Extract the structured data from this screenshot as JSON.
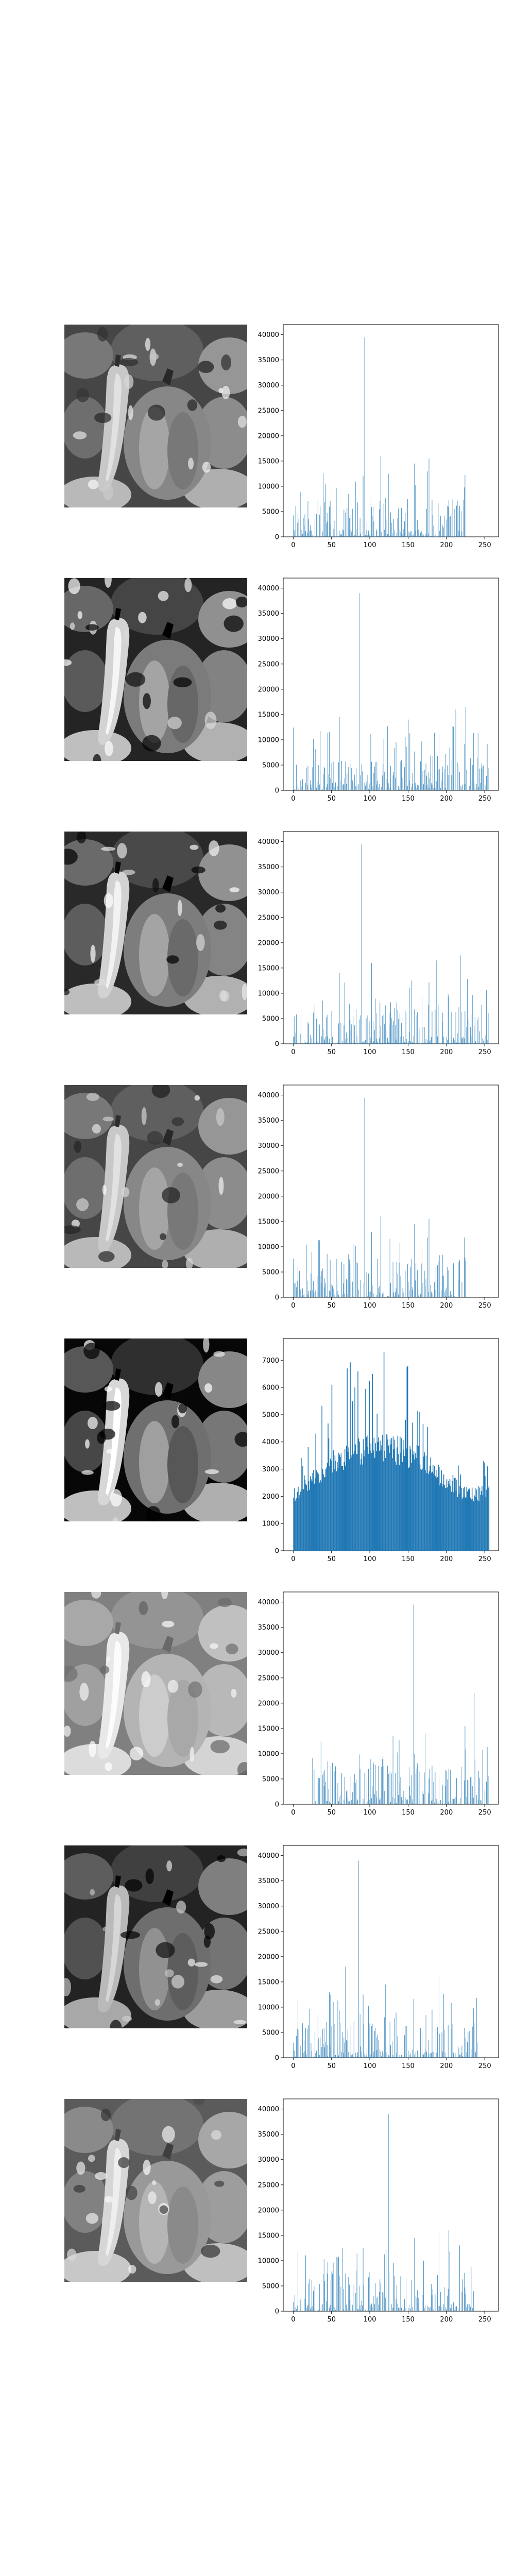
{
  "chart_data": [
    {
      "type": "bar",
      "image": "peppers-original-grayscale",
      "xlim": [
        -13,
        268
      ],
      "ylim": [
        0,
        42000
      ],
      "xticks": [
        "0",
        "50",
        "100",
        "150",
        "200",
        "250"
      ],
      "yticks": [
        "0",
        "5000",
        "10000",
        "15000",
        "20000",
        "25000",
        "30000",
        "35000",
        "40000"
      ],
      "grid": false,
      "range": [
        0,
        225
      ],
      "peaks": [
        [
          93,
          39500
        ],
        [
          158,
          14500
        ],
        [
          177,
          15500
        ],
        [
          72,
          8500
        ],
        [
          114,
          16000
        ]
      ],
      "base_level": 3500
    },
    {
      "type": "bar",
      "image": "peppers-contrast-enhanced",
      "xlim": [
        -13,
        268
      ],
      "ylim": [
        0,
        42000
      ],
      "xticks": [
        "0",
        "50",
        "100",
        "150",
        "200",
        "250"
      ],
      "yticks": [
        "0",
        "5000",
        "10000",
        "15000",
        "20000",
        "25000",
        "30000",
        "35000",
        "40000"
      ],
      "grid": false,
      "range": [
        0,
        255
      ],
      "peaks": [
        [
          86,
          39000
        ],
        [
          212,
          16000
        ],
        [
          225,
          16500
        ],
        [
          150,
          14000
        ],
        [
          60,
          14500
        ]
      ],
      "base_level": 3000
    },
    {
      "type": "bar",
      "image": "peppers-contrast-stretched",
      "xlim": [
        -13,
        268
      ],
      "ylim": [
        0,
        42000
      ],
      "xticks": [
        "0",
        "50",
        "100",
        "150",
        "200",
        "250"
      ],
      "yticks": [
        "0",
        "5000",
        "10000",
        "15000",
        "20000",
        "25000",
        "30000",
        "35000",
        "40000"
      ],
      "grid": false,
      "range": [
        0,
        255
      ],
      "peaks": [
        [
          89,
          39500
        ],
        [
          218,
          17500
        ],
        [
          187,
          16500
        ],
        [
          102,
          16000
        ],
        [
          60,
          14000
        ]
      ],
      "base_level": 3500
    },
    {
      "type": "bar",
      "image": "peppers-grayscale-copy",
      "xlim": [
        -13,
        268
      ],
      "ylim": [
        0,
        42000
      ],
      "xticks": [
        "0",
        "50",
        "100",
        "150",
        "200",
        "250"
      ],
      "yticks": [
        "0",
        "5000",
        "10000",
        "15000",
        "20000",
        "25000",
        "30000",
        "35000",
        "40000"
      ],
      "grid": false,
      "range": [
        0,
        225
      ],
      "peaks": [
        [
          93,
          39500
        ],
        [
          158,
          14500
        ],
        [
          177,
          15500
        ],
        [
          72,
          8500
        ],
        [
          114,
          16000
        ]
      ],
      "base_level": 3500
    },
    {
      "type": "bar",
      "image": "peppers-histogram-equalized",
      "xlim": [
        -13,
        268
      ],
      "ylim": [
        0,
        7800
      ],
      "xticks": [
        "0",
        "50",
        "100",
        "150",
        "200",
        "250"
      ],
      "yticks": [
        "0",
        "1000",
        "2000",
        "3000",
        "4000",
        "5000",
        "6000",
        "7000"
      ],
      "grid": false,
      "range": [
        0,
        255
      ],
      "peaks": [
        [
          118,
          7300
        ],
        [
          70,
          6700
        ],
        [
          84,
          6600
        ],
        [
          103,
          6500
        ],
        [
          50,
          6100
        ]
      ],
      "base_level": 3800
    },
    {
      "type": "bar",
      "image": "peppers-brightened",
      "xlim": [
        -13,
        268
      ],
      "ylim": [
        0,
        42000
      ],
      "xticks": [
        "0",
        "50",
        "100",
        "150",
        "200",
        "250"
      ],
      "yticks": [
        "0",
        "5000",
        "10000",
        "15000",
        "20000",
        "25000",
        "30000",
        "35000",
        "40000"
      ],
      "grid": false,
      "range": [
        25,
        255
      ],
      "peaks": [
        [
          157,
          39500
        ],
        [
          236,
          22000
        ],
        [
          224,
          15500
        ],
        [
          172,
          14000
        ],
        [
          130,
          13500
        ]
      ],
      "base_level": 3500
    },
    {
      "type": "bar",
      "image": "peppers-darker-gamma",
      "xlim": [
        -13,
        268
      ],
      "ylim": [
        0,
        42000
      ],
      "xticks": [
        "0",
        "50",
        "100",
        "150",
        "200",
        "250"
      ],
      "yticks": [
        "0",
        "5000",
        "10000",
        "15000",
        "20000",
        "25000",
        "30000",
        "35000",
        "40000"
      ],
      "grid": false,
      "range": [
        0,
        240
      ],
      "peaks": [
        [
          85,
          39000
        ],
        [
          190,
          16000
        ],
        [
          120,
          14500
        ],
        [
          68,
          18000
        ],
        [
          47,
          13000
        ]
      ],
      "base_level": 3200
    },
    {
      "type": "bar",
      "image": "peppers-lightened-gamma",
      "xlim": [
        -13,
        268
      ],
      "ylim": [
        0,
        42000
      ],
      "xticks": [
        "0",
        "50",
        "100",
        "150",
        "200",
        "250"
      ],
      "yticks": [
        "0",
        "5000",
        "10000",
        "15000",
        "20000",
        "25000",
        "30000",
        "35000",
        "40000"
      ],
      "grid": false,
      "range": [
        0,
        235
      ],
      "peaks": [
        [
          124,
          39000
        ],
        [
          203,
          16000
        ],
        [
          190,
          15500
        ],
        [
          158,
          14500
        ],
        [
          91,
          12500
        ]
      ],
      "base_level": 3500
    }
  ],
  "image_tints": [
    {
      "shade": "#8a8a8a",
      "contrast": 1.0
    },
    {
      "shade": "#7c7c7c",
      "contrast": 1.35
    },
    {
      "shade": "#7e7e7e",
      "contrast": 1.3
    },
    {
      "shade": "#8a8a8a",
      "contrast": 1.0
    },
    {
      "shade": "#6e6e6e",
      "contrast": 1.6
    },
    {
      "shade": "#b8b8b8",
      "contrast": 0.8
    },
    {
      "shade": "#707070",
      "contrast": 1.15
    },
    {
      "shade": "#9c9c9c",
      "contrast": 0.95
    }
  ],
  "bar_color": "#1f77b4"
}
